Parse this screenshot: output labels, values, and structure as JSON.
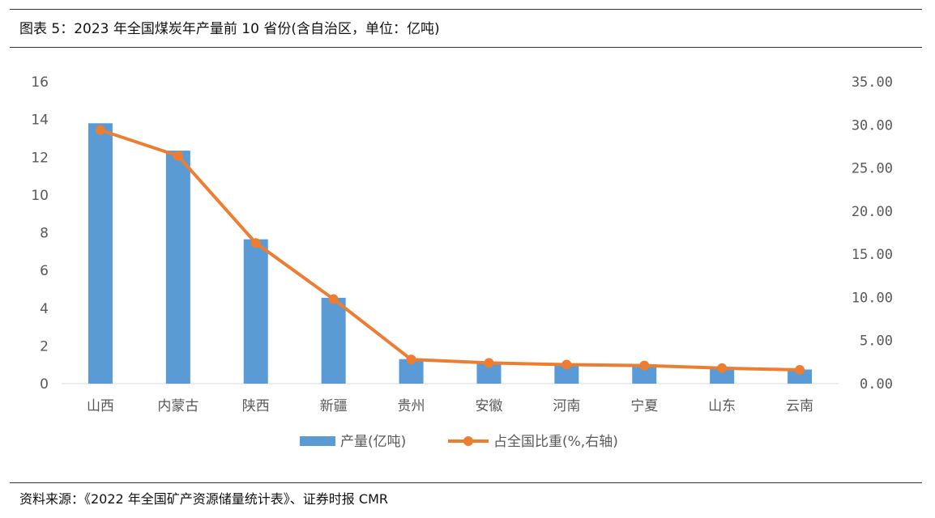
{
  "figure": {
    "title": "图表 5：2023 年全国煤炭年产量前 10 省份(含自治区，单位：亿吨)",
    "source": "资料来源：《2022 年全国矿产资源储量统计表》、证券时报 CMR"
  },
  "chart_data": {
    "type": "bar+line",
    "categories": [
      "山西",
      "内蒙古",
      "陕西",
      "新疆",
      "贵州",
      "安徽",
      "河南",
      "宁夏",
      "山东",
      "云南"
    ],
    "series": [
      {
        "name": "产量(亿吨)",
        "type": "bar",
        "axis": "left",
        "color": "#5B9BD5",
        "values": [
          13.8,
          12.35,
          7.65,
          4.55,
          1.3,
          1.12,
          0.98,
          0.95,
          0.88,
          0.75
        ]
      },
      {
        "name": "占全国比重(%,右轴)",
        "type": "line",
        "axis": "right",
        "color": "#ED7D31",
        "values": [
          29.4,
          26.4,
          16.3,
          9.8,
          2.8,
          2.4,
          2.2,
          2.1,
          1.8,
          1.6
        ]
      }
    ],
    "left_axis": {
      "ylim": [
        0,
        16
      ],
      "ticks": [
        "0",
        "2",
        "4",
        "6",
        "8",
        "10",
        "12",
        "14",
        "16"
      ]
    },
    "right_axis": {
      "ylim": [
        0,
        35
      ],
      "ticks": [
        "0.00",
        "5.00",
        "10.00",
        "15.00",
        "20.00",
        "25.00",
        "30.00",
        "35.00"
      ]
    },
    "grid": false,
    "legend_position": "bottom"
  }
}
